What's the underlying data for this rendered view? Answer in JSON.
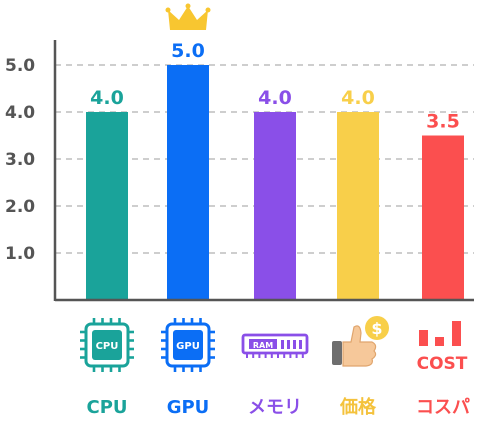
{
  "chart_data": {
    "type": "bar",
    "categories": [
      "CPU",
      "GPU",
      "メモリ",
      "価格",
      "コスパ"
    ],
    "values": [
      4.0,
      5.0,
      4.0,
      4.0,
      3.5
    ],
    "value_labels": [
      "4.0",
      "5.0",
      "4.0",
      "4.0",
      "3.5"
    ],
    "colors": [
      "#1aa39a",
      "#0b6ef5",
      "#8a4fe8",
      "#f8cf4a",
      "#fb4f4f"
    ],
    "ylim": [
      0,
      5.0
    ],
    "yticks": [
      1.0,
      2.0,
      3.0,
      4.0,
      5.0
    ],
    "ytick_labels": [
      "1.0",
      "2.0",
      "3.0",
      "4.0",
      "5.0"
    ],
    "grid": true,
    "highlight": {
      "category": "GPU",
      "icon": "crown-icon",
      "color": "#f8c630"
    },
    "category_icons": [
      {
        "icon": "cpu-chip-icon",
        "text": "CPU"
      },
      {
        "icon": "gpu-chip-icon",
        "text": "GPU"
      },
      {
        "icon": "ram-module-icon",
        "text": "RAM"
      },
      {
        "icon": "thumbs-up-coin-icon",
        "text": "$"
      },
      {
        "icon": "cost-bars-icon",
        "text": "COST"
      }
    ]
  }
}
